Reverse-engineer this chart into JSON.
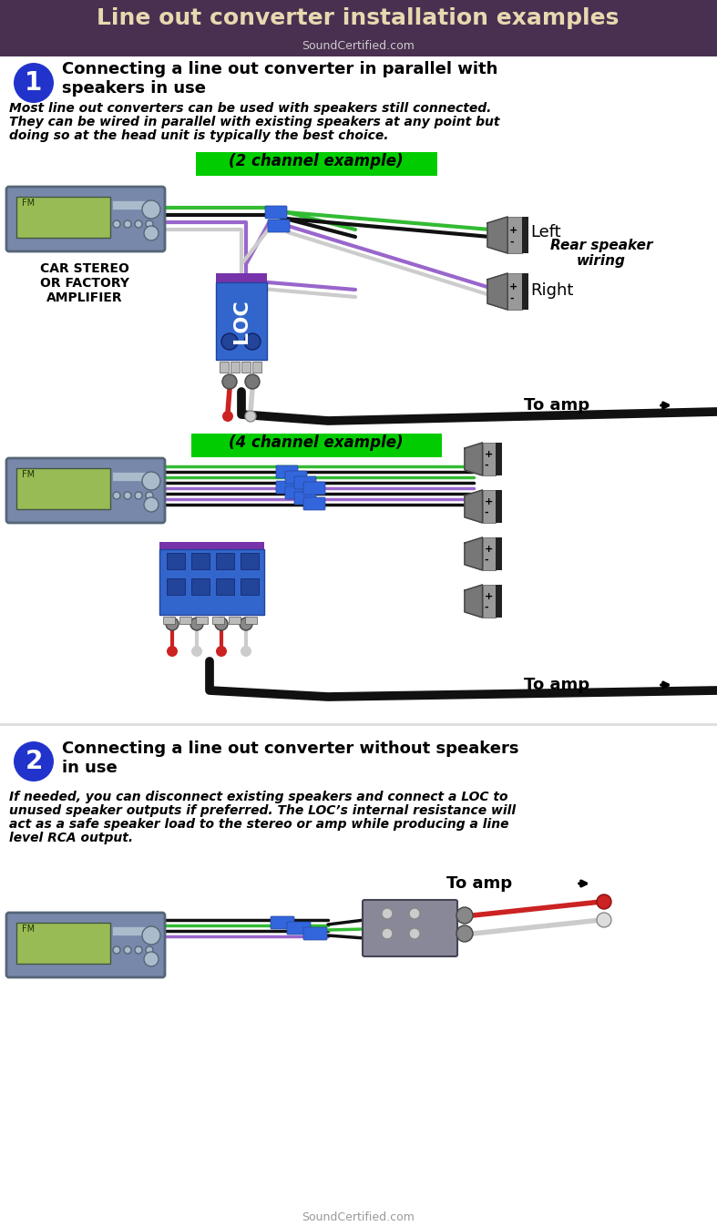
{
  "title": "Line out converter installation examples",
  "subtitle": "SoundCertified.com",
  "bg_color": "#ffffff",
  "header_bg": "#4a3050",
  "header_text_color": "#e8d8b0",
  "subtitle_color": "#cccccc",
  "section1_heading": "Connecting a line out converter in parallel with\nspeakers in use",
  "section1_body1": "Most line out converters can be used with speakers still connected.",
  "section1_body2": "They can be wired in parallel with existing speakers at any point but",
  "section1_body3": "doing so at the head unit is typically the best choice.",
  "label_2ch": "(2 channel example)",
  "label_4ch": "(4 channel example)",
  "label_green": "#00cc00",
  "stereo_label": "CAR STEREO\nOR FACTORY\nAMPLIFIER",
  "left_label": "Left",
  "right_label": "Right",
  "rear_speaker_label": "Rear speaker\nwiring",
  "to_amp_label": "To amp",
  "section2_heading": "Connecting a line out converter without speakers\nin use",
  "section2_body1": "If needed, you can disconnect existing speakers and connect a LOC to",
  "section2_body2": "unused speaker outputs if preferred. The LOC’s internal resistance will",
  "section2_body3": "act as a safe speaker load to the stereo or amp while producing a line",
  "section2_body4": "level RCA output.",
  "wire_black": "#111111",
  "wire_green": "#33bb33",
  "wire_purple": "#9966cc",
  "wire_white": "#cccccc",
  "loc_blue": "#3366cc",
  "loc_purple_top": "#7733aa",
  "connector_blue": "#3366dd",
  "speaker_gray": "#888888",
  "rca_red": "#cc2222",
  "badge_blue": "#2233cc",
  "stereo_body": "#7788aa",
  "stereo_screen": "#99bb55",
  "stereo_edge": "#556677"
}
